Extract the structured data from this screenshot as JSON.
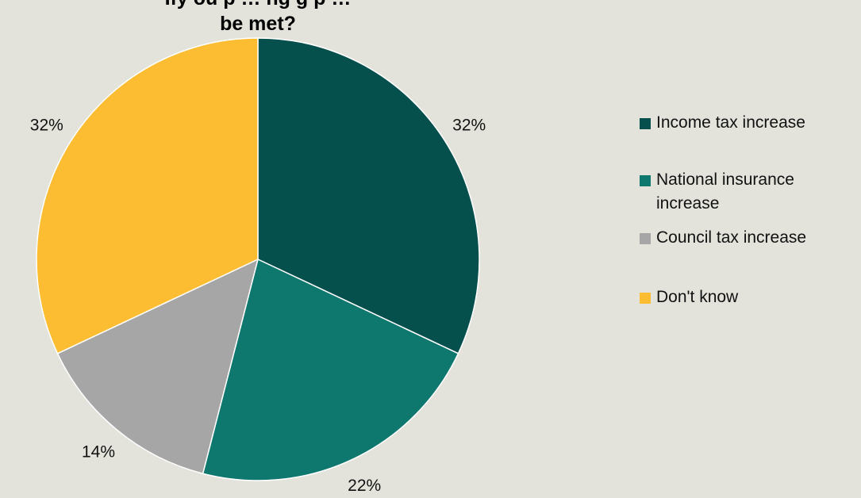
{
  "title": {
    "line1": "Ify ou p … ng g p …",
    "line2": "be met?"
  },
  "chart_data": {
    "type": "pie",
    "categories": [
      "Income tax increase",
      "National insurance increase",
      "Council tax increase",
      "Don't know"
    ],
    "values": [
      32,
      22,
      14,
      32
    ],
    "labels": [
      "32%",
      "22%",
      "14%",
      "32%"
    ],
    "colors": [
      "#054f4d",
      "#0e776e",
      "#a6a6a6",
      "#fcbd32"
    ],
    "legend_position": "right",
    "start": "top",
    "direction": "clockwise"
  }
}
